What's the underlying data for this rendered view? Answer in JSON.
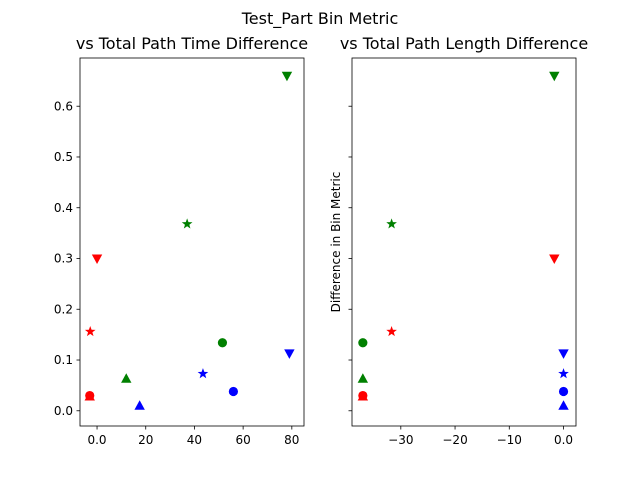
{
  "figure": {
    "title": "Test_Part Bin Metric"
  },
  "chart_data": [
    {
      "type": "scatter",
      "title": "vs Total Path Time Difference",
      "xlabel": "",
      "ylabel": "",
      "xlim": [
        -7,
        85
      ],
      "ylim": [
        -0.03,
        0.695
      ],
      "xticks": [
        0,
        20,
        40,
        60,
        80
      ],
      "yticks": [
        0.0,
        0.1,
        0.2,
        0.3,
        0.4,
        0.5,
        0.6
      ],
      "points": [
        {
          "x": -3.0,
          "y": 0.03,
          "marker": "circle",
          "color": "#ff0000"
        },
        {
          "x": -3.0,
          "y": 0.028,
          "marker": "triangle-up",
          "color": "#ff0000"
        },
        {
          "x": -2.8,
          "y": 0.156,
          "marker": "star",
          "color": "#ff0000"
        },
        {
          "x": 0.0,
          "y": 0.3,
          "marker": "triangle-down",
          "color": "#ff0000"
        },
        {
          "x": 12.0,
          "y": 0.063,
          "marker": "triangle-up",
          "color": "#008000"
        },
        {
          "x": 37.0,
          "y": 0.368,
          "marker": "star",
          "color": "#008000"
        },
        {
          "x": 51.5,
          "y": 0.134,
          "marker": "circle",
          "color": "#008000"
        },
        {
          "x": 78.0,
          "y": 0.66,
          "marker": "triangle-down",
          "color": "#008000"
        },
        {
          "x": 17.5,
          "y": 0.01,
          "marker": "triangle-up",
          "color": "#0000ff"
        },
        {
          "x": 43.5,
          "y": 0.073,
          "marker": "star",
          "color": "#0000ff"
        },
        {
          "x": 56.0,
          "y": 0.038,
          "marker": "circle",
          "color": "#0000ff"
        },
        {
          "x": 79.0,
          "y": 0.113,
          "marker": "triangle-down",
          "color": "#0000ff"
        }
      ]
    },
    {
      "type": "scatter",
      "title": "vs Total Path Length Difference",
      "xlabel": "",
      "ylabel": "Difference in Bin Metric",
      "xlim": [
        -39,
        2.3
      ],
      "ylim": [
        -0.03,
        0.695
      ],
      "xticks": [
        -30,
        -20,
        -10,
        0
      ],
      "yticks": [],
      "points": [
        {
          "x": -37.0,
          "y": 0.03,
          "marker": "circle",
          "color": "#ff0000"
        },
        {
          "x": -37.0,
          "y": 0.028,
          "marker": "triangle-up",
          "color": "#ff0000"
        },
        {
          "x": -31.7,
          "y": 0.156,
          "marker": "star",
          "color": "#ff0000"
        },
        {
          "x": -1.7,
          "y": 0.3,
          "marker": "triangle-down",
          "color": "#ff0000"
        },
        {
          "x": -37.0,
          "y": 0.063,
          "marker": "triangle-up",
          "color": "#008000"
        },
        {
          "x": -31.7,
          "y": 0.368,
          "marker": "star",
          "color": "#008000"
        },
        {
          "x": -37.0,
          "y": 0.134,
          "marker": "circle",
          "color": "#008000"
        },
        {
          "x": -1.7,
          "y": 0.66,
          "marker": "triangle-down",
          "color": "#008000"
        },
        {
          "x": 0.0,
          "y": 0.01,
          "marker": "triangle-up",
          "color": "#0000ff"
        },
        {
          "x": 0.0,
          "y": 0.073,
          "marker": "star",
          "color": "#0000ff"
        },
        {
          "x": 0.0,
          "y": 0.038,
          "marker": "circle",
          "color": "#0000ff"
        },
        {
          "x": 0.0,
          "y": 0.113,
          "marker": "triangle-down",
          "color": "#0000ff"
        }
      ]
    }
  ]
}
